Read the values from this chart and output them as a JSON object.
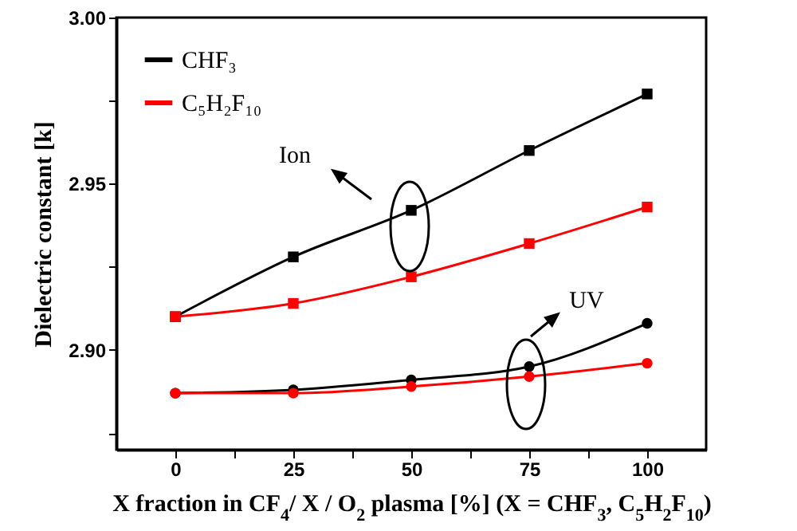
{
  "chart_data": {
    "type": "line",
    "xlabel": "X fraction in CF$_{4}$/ X / O$_{2}$ plasma [%] (X = CHF$_{3}$, C$_{5}$H$_{2}$F$_{10}$)",
    "ylabel": "Dielectric constant [k]",
    "x": [
      0,
      25,
      50,
      75,
      100
    ],
    "series": [
      {
        "name": "CHF₃",
        "color": "#000000",
        "marker": "square",
        "values": [
          2.91,
          2.928,
          2.942,
          2.96,
          2.977
        ]
      },
      {
        "name": "C₅H₂F₁₀",
        "color": "#ff0000",
        "marker": "square",
        "values": [
          2.91,
          2.914,
          2.922,
          2.932,
          2.943
        ]
      },
      {
        "color": "#000000",
        "marker": "circle",
        "values": [
          2.887,
          2.888,
          2.891,
          2.895,
          2.908
        ]
      },
      {
        "color": "#ff0000",
        "marker": "circle",
        "values": [
          2.887,
          2.887,
          2.889,
          2.892,
          2.896
        ]
      }
    ],
    "xlim": [
      -12.5,
      112.5
    ],
    "xticks": [
      0,
      {
        "value": 12.5,
        "label": null
      },
      25,
      {
        "value": 37.5,
        "label": null
      },
      50,
      {
        "value": 62.5,
        "label": null
      },
      75,
      {
        "value": 87.5,
        "label": null
      },
      100
    ],
    "ylim": [
      2.87,
      3.0
    ],
    "yticks": [
      {
        "value": 2.875,
        "label": null
      },
      {
        "value": 2.9,
        "label": "2.90"
      },
      {
        "value": 2.925,
        "label": null
      },
      {
        "value": 2.95,
        "label": "2.95"
      },
      {
        "value": 2.975,
        "label": null
      },
      {
        "value": 3.0,
        "label": "3.00"
      }
    ],
    "annotations": [
      "Ion",
      "UV"
    ],
    "legend": "top left",
    "grid": false
  }
}
